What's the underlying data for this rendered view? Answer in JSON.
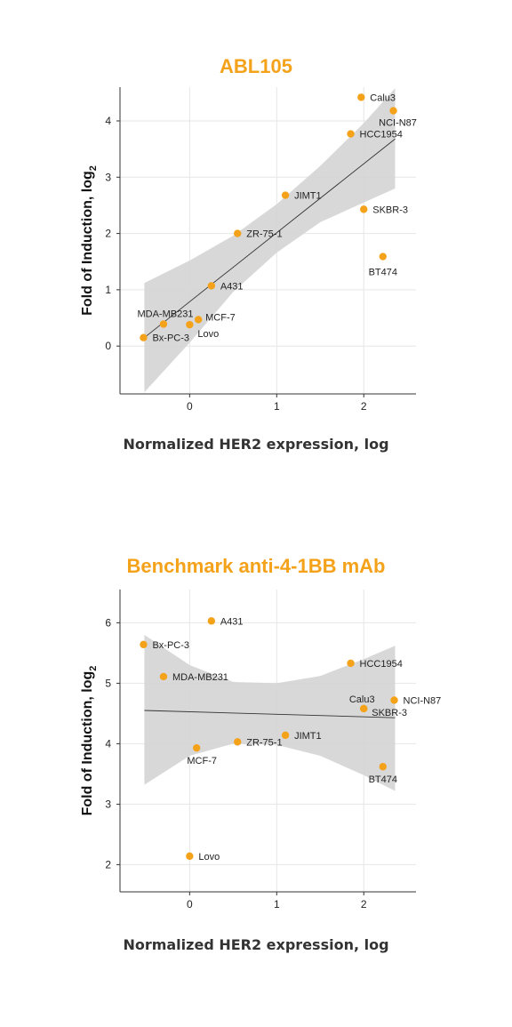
{
  "accent_color": "#f5a21b",
  "chart_data": [
    {
      "type": "scatter",
      "title": "ABL105",
      "xlabel": "Normalized HER2 expression, log",
      "ylabel": "Fold of Induction, log",
      "ylabel_subscript": "2",
      "xlim": [
        -0.8,
        2.6
      ],
      "ylim": [
        -0.85,
        4.6
      ],
      "xticks": [
        0,
        1,
        2
      ],
      "yticks": [
        0,
        1,
        2,
        3,
        4
      ],
      "grid": true,
      "trend": {
        "from": [
          -0.52,
          0.15
        ],
        "to": [
          2.36,
          3.68
        ]
      },
      "band": {
        "upper": [
          [
            -0.52,
            1.12
          ],
          [
            0.0,
            1.52
          ],
          [
            0.5,
            1.96
          ],
          [
            1.0,
            2.52
          ],
          [
            1.5,
            3.2
          ],
          [
            2.0,
            3.96
          ],
          [
            2.36,
            4.58
          ]
        ],
        "lower": [
          [
            -0.52,
            -0.82
          ],
          [
            0.0,
            0.06
          ],
          [
            0.5,
            0.96
          ],
          [
            1.0,
            1.66
          ],
          [
            1.5,
            2.2
          ],
          [
            2.0,
            2.55
          ],
          [
            2.36,
            2.8
          ]
        ]
      },
      "points": [
        {
          "label": "Calu3",
          "x": 1.97,
          "y": 4.42,
          "lx": 10,
          "ly": 0,
          "anchor": "start"
        },
        {
          "label": "NCI-N87",
          "x": 2.34,
          "y": 4.18,
          "lx": 5,
          "ly": 13,
          "anchor": "middle"
        },
        {
          "label": "HCC1954",
          "x": 1.85,
          "y": 3.77,
          "lx": 10,
          "ly": 0,
          "anchor": "start"
        },
        {
          "label": "JIMT1",
          "x": 1.1,
          "y": 2.68,
          "lx": 10,
          "ly": 0,
          "anchor": "start"
        },
        {
          "label": "SKBR-3",
          "x": 2.0,
          "y": 2.43,
          "lx": 10,
          "ly": 0,
          "anchor": "start"
        },
        {
          "label": "ZR-75-1",
          "x": 0.55,
          "y": 2.0,
          "lx": 10,
          "ly": 0,
          "anchor": "start"
        },
        {
          "label": "BT474",
          "x": 2.22,
          "y": 1.59,
          "lx": 0,
          "ly": 17,
          "anchor": "middle"
        },
        {
          "label": "A431",
          "x": 0.25,
          "y": 1.07,
          "lx": 10,
          "ly": 0,
          "anchor": "start"
        },
        {
          "label": "MDA-MB231",
          "x": -0.3,
          "y": 0.39,
          "lx": 2,
          "ly": -12,
          "anchor": "middle"
        },
        {
          "label": "MCF-7",
          "x": 0.1,
          "y": 0.47,
          "lx": 8,
          "ly": -3,
          "anchor": "start"
        },
        {
          "label": "Lovo",
          "x": 0.0,
          "y": 0.38,
          "lx": 9,
          "ly": 10,
          "anchor": "start"
        },
        {
          "label": "Bx-PC-3",
          "x": -0.53,
          "y": 0.15,
          "lx": 10,
          "ly": 0,
          "anchor": "start"
        }
      ]
    },
    {
      "type": "scatter",
      "title": "Benchmark anti-4-1BB mAb",
      "xlabel": "Normalized HER2 expression, log",
      "ylabel": "Fold of Induction, log",
      "ylabel_subscript": "2",
      "xlim": [
        -0.8,
        2.6
      ],
      "ylim": [
        1.55,
        6.55
      ],
      "xticks": [
        0,
        1,
        2
      ],
      "yticks": [
        2,
        3,
        4,
        5,
        6
      ],
      "grid": true,
      "trend": {
        "from": [
          -0.52,
          4.55
        ],
        "to": [
          2.36,
          4.43
        ]
      },
      "band": {
        "upper": [
          [
            -0.52,
            5.8
          ],
          [
            0.0,
            5.3
          ],
          [
            0.5,
            5.02
          ],
          [
            1.0,
            5.0
          ],
          [
            1.5,
            5.12
          ],
          [
            2.0,
            5.4
          ],
          [
            2.36,
            5.62
          ]
        ],
        "lower": [
          [
            -0.52,
            3.32
          ],
          [
            0.0,
            3.8
          ],
          [
            0.5,
            4.0
          ],
          [
            1.0,
            3.98
          ],
          [
            1.5,
            3.8
          ],
          [
            2.0,
            3.48
          ],
          [
            2.36,
            3.22
          ]
        ]
      },
      "points": [
        {
          "label": "A431",
          "x": 0.25,
          "y": 6.03,
          "lx": 10,
          "ly": 0,
          "anchor": "start"
        },
        {
          "label": "Bx-PC-3",
          "x": -0.53,
          "y": 5.64,
          "lx": 10,
          "ly": 0,
          "anchor": "start"
        },
        {
          "label": "MDA-MB231",
          "x": -0.3,
          "y": 5.11,
          "lx": 10,
          "ly": 0,
          "anchor": "start"
        },
        {
          "label": "HCC1954",
          "x": 1.85,
          "y": 5.33,
          "lx": 10,
          "ly": 0,
          "anchor": "start"
        },
        {
          "label": "Calu3",
          "x": 2.0,
          "y": 4.58,
          "lx": -2,
          "ly": -11,
          "anchor": "middle"
        },
        {
          "label": "NCI-N87",
          "x": 2.35,
          "y": 4.72,
          "lx": 10,
          "ly": 0,
          "anchor": "start"
        },
        {
          "label": "SKBR-3",
          "x": 2.0,
          "y": 4.58,
          "lx": 9,
          "ly": 4,
          "anchor": "start"
        },
        {
          "label": "JIMT1",
          "x": 1.1,
          "y": 4.14,
          "lx": 10,
          "ly": 0,
          "anchor": "start"
        },
        {
          "label": "ZR-75-1",
          "x": 0.55,
          "y": 4.03,
          "lx": 10,
          "ly": 0,
          "anchor": "start"
        },
        {
          "label": "MCF-7",
          "x": 0.08,
          "y": 3.93,
          "lx": 6,
          "ly": 14,
          "anchor": "middle"
        },
        {
          "label": "BT474",
          "x": 2.22,
          "y": 3.62,
          "lx": 0,
          "ly": 14,
          "anchor": "middle"
        },
        {
          "label": "Lovo",
          "x": 0.0,
          "y": 2.14,
          "lx": 10,
          "ly": 0,
          "anchor": "start"
        }
      ]
    }
  ]
}
